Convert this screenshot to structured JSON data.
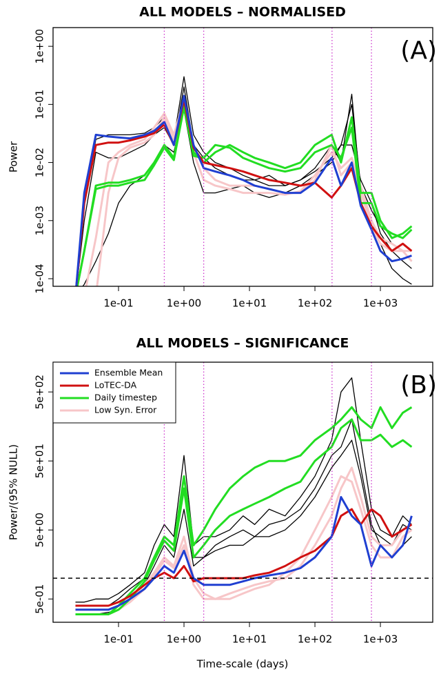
{
  "chart_data": [
    {
      "type": "line",
      "title": "ALL MODELS – NORMALISED",
      "ylabel": "Power",
      "annotation": "(A)",
      "xlog": true,
      "ylog": true,
      "xlim": [
        0.01,
        6300
      ],
      "ylim": [
        7.4e-05,
        2.1
      ],
      "xticks": [
        {
          "value": 0.1,
          "label": "1e-01"
        },
        {
          "value": 1,
          "label": "1e+00"
        },
        {
          "value": 10,
          "label": "1e+01"
        },
        {
          "value": 100,
          "label": "1e+02"
        },
        {
          "value": 1000,
          "label": "1e+03"
        }
      ],
      "yticks": [
        {
          "value": 0.0001,
          "label": "1e-04"
        },
        {
          "value": 0.001,
          "label": "1e-03"
        },
        {
          "value": 0.01,
          "label": "1e-02"
        },
        {
          "value": 0.1,
          "label": "1e-01"
        },
        {
          "value": 1,
          "label": "1e+00"
        }
      ],
      "vlines": [
        0.5,
        2,
        182.5,
        730
      ],
      "vline_color": "#cc33cc",
      "x": [
        0.022,
        0.03,
        0.045,
        0.07,
        0.1,
        0.15,
        0.25,
        0.35,
        0.5,
        0.7,
        1,
        1.4,
        2,
        3,
        5,
        8,
        12,
        20,
        35,
        60,
        100,
        180,
        250,
        365,
        500,
        730,
        1000,
        1500,
        2200,
        3000
      ],
      "series": [
        {
          "color": "#000000",
          "values": [
            5e-05,
            0.002,
            0.025,
            0.03,
            0.03,
            0.03,
            0.032,
            0.04,
            0.06,
            0.025,
            0.3,
            0.03,
            0.015,
            0.01,
            0.008,
            0.006,
            0.005,
            0.004,
            0.004,
            0.005,
            0.008,
            0.02,
            0.01,
            0.15,
            0.003,
            0.001,
            0.0004,
            0.00015,
            0.0001,
            8e-05
          ]
        },
        {
          "color": "#000000",
          "values": [
            5e-05,
            8e-05,
            0.0002,
            0.0006,
            0.002,
            0.004,
            0.006,
            0.01,
            0.02,
            0.015,
            0.08,
            0.01,
            0.003,
            0.003,
            0.0035,
            0.004,
            0.003,
            0.0025,
            0.003,
            0.004,
            0.006,
            0.01,
            0.02,
            0.02,
            0.005,
            0.002,
            0.0006,
            0.0003,
            0.0002,
            0.00015
          ]
        },
        {
          "color": "#000000",
          "values": [
            5e-05,
            0.001,
            0.015,
            0.012,
            0.012,
            0.015,
            0.02,
            0.03,
            0.04,
            0.02,
            0.2,
            0.02,
            0.012,
            0.008,
            0.006,
            0.005,
            0.005,
            0.006,
            0.004,
            0.005,
            0.007,
            0.012,
            0.02,
            0.1,
            0.004,
            0.0015,
            0.0008,
            0.0004,
            0.0003,
            0.0002
          ]
        },
        {
          "color": "#f7c6c8",
          "values": [
            5e-05,
            5e-05,
            0.0005,
            0.01,
            0.015,
            0.02,
            0.025,
            0.04,
            0.07,
            0.03,
            0.12,
            0.02,
            0.008,
            0.005,
            0.004,
            0.004,
            0.004,
            0.0035,
            0.003,
            0.003,
            0.005,
            0.02,
            0.006,
            0.01,
            0.003,
            0.0008,
            0.0004,
            0.0003,
            0.0003,
            0.0003
          ]
        },
        {
          "color": "#f7c6c8",
          "values": [
            5e-05,
            5e-05,
            5e-05,
            0.003,
            0.012,
            0.018,
            0.022,
            0.03,
            0.06,
            0.025,
            0.1,
            0.015,
            0.005,
            0.004,
            0.0035,
            0.003,
            0.003,
            0.003,
            0.0028,
            0.0032,
            0.006,
            0.015,
            0.008,
            0.012,
            0.004,
            0.001,
            0.0005,
            0.0004,
            0.0003,
            0.0002
          ]
        },
        {
          "color": "#22dd22",
          "values": [
            5e-05,
            0.0003,
            0.004,
            0.0045,
            0.0045,
            0.005,
            0.006,
            0.01,
            0.02,
            0.012,
            0.1,
            0.015,
            0.01,
            0.015,
            0.02,
            0.015,
            0.012,
            0.01,
            0.008,
            0.01,
            0.02,
            0.03,
            0.01,
            0.06,
            0.003,
            0.003,
            0.001,
            0.0005,
            0.0006,
            0.0008
          ]
        },
        {
          "color": "#22dd22",
          "values": [
            5e-05,
            0.0003,
            0.0035,
            0.004,
            0.004,
            0.0045,
            0.005,
            0.009,
            0.018,
            0.011,
            0.09,
            0.013,
            0.012,
            0.02,
            0.018,
            0.012,
            0.01,
            0.008,
            0.007,
            0.008,
            0.015,
            0.02,
            0.012,
            0.04,
            0.002,
            0.002,
            0.0008,
            0.0006,
            0.0005,
            0.0007
          ]
        },
        {
          "color": "#d01010",
          "values": [
            5e-05,
            0.002,
            0.02,
            0.022,
            0.022,
            0.024,
            0.028,
            0.032,
            0.045,
            0.02,
            0.12,
            0.018,
            0.01,
            0.009,
            0.008,
            0.007,
            0.006,
            0.005,
            0.0045,
            0.004,
            0.0045,
            0.0025,
            0.004,
            0.008,
            0.002,
            0.0008,
            0.0005,
            0.0003,
            0.0004,
            0.0003
          ]
        },
        {
          "color": "#1f3fd1",
          "values": [
            5e-05,
            0.003,
            0.03,
            0.028,
            0.027,
            0.026,
            0.03,
            0.035,
            0.05,
            0.02,
            0.14,
            0.02,
            0.008,
            0.007,
            0.006,
            0.005,
            0.004,
            0.0035,
            0.003,
            0.003,
            0.0045,
            0.012,
            0.004,
            0.01,
            0.0018,
            0.0007,
            0.0003,
            0.0002,
            0.00022,
            0.00025
          ]
        }
      ]
    },
    {
      "type": "line",
      "title": "ALL MODELS – SIGNIFICANCE",
      "ylabel": "Power/(95% NULL)",
      "xlabel": "Time-scale (days)",
      "annotation": "(B)",
      "xlog": true,
      "ylog": true,
      "xlim": [
        0.01,
        6300
      ],
      "ylim": [
        0.23,
        1350
      ],
      "legend": "top-left",
      "xticks": [
        {
          "value": 0.1,
          "label": "1e-01"
        },
        {
          "value": 1,
          "label": "1e+00"
        },
        {
          "value": 10,
          "label": "1e+01"
        },
        {
          "value": 100,
          "label": "1e+02"
        },
        {
          "value": 1000,
          "label": "1e+03"
        }
      ],
      "yticks": [
        {
          "value": 0.5,
          "label": "5e-01"
        },
        {
          "value": 5,
          "label": "5e+00"
        },
        {
          "value": 50,
          "label": "5e+01"
        },
        {
          "value": 500,
          "label": "5e+02"
        }
      ],
      "vlines": [
        0.5,
        2,
        182.5,
        730
      ],
      "vline_color": "#cc33cc",
      "hline": 1,
      "x": [
        0.022,
        0.03,
        0.045,
        0.07,
        0.1,
        0.15,
        0.25,
        0.35,
        0.5,
        0.7,
        1,
        1.4,
        2,
        3,
        5,
        8,
        12,
        20,
        35,
        60,
        100,
        180,
        250,
        365,
        500,
        730,
        1000,
        1500,
        2200,
        3000
      ],
      "series": [
        {
          "color": "#000000",
          "values": [
            0.45,
            0.45,
            0.5,
            0.5,
            0.6,
            0.8,
            1.2,
            3,
            6,
            4,
            60,
            3,
            4,
            4,
            5,
            8,
            6,
            10,
            8,
            15,
            30,
            100,
            500,
            800,
            100,
            10,
            5,
            4,
            8,
            6
          ]
        },
        {
          "color": "#000000",
          "values": [
            0.3,
            0.3,
            0.3,
            0.32,
            0.35,
            0.5,
            0.8,
            1.5,
            3,
            2,
            10,
            1.5,
            2,
            3,
            4,
            5,
            4,
            6,
            7,
            10,
            20,
            60,
            80,
            200,
            40,
            6,
            3,
            2,
            3,
            4
          ]
        },
        {
          "color": "#000000",
          "values": [
            0.4,
            0.4,
            0.4,
            0.4,
            0.5,
            0.7,
            1.0,
            2,
            4,
            3,
            20,
            2,
            2,
            2.5,
            3,
            3,
            4,
            4,
            5,
            8,
            15,
            40,
            60,
            100,
            30,
            5,
            4,
            3,
            6,
            5
          ]
        },
        {
          "name": "Low Syn. Error",
          "color": "#f7c6c8",
          "values": [
            0.35,
            0.35,
            0.35,
            0.35,
            0.4,
            0.5,
            0.8,
            1.2,
            2,
            1.5,
            4,
            1.0,
            0.6,
            0.5,
            0.6,
            0.7,
            0.8,
            0.9,
            1.0,
            1.5,
            3,
            8,
            20,
            40,
            15,
            4,
            3,
            3,
            5,
            6
          ]
        },
        {
          "color": "#f7c6c8",
          "values": [
            0.3,
            0.3,
            0.3,
            0.3,
            0.35,
            0.45,
            0.7,
            1.1,
            1.8,
            1.4,
            3,
            0.8,
            0.5,
            0.5,
            0.5,
            0.6,
            0.7,
            0.8,
            1.2,
            2,
            5,
            15,
            30,
            25,
            10,
            3,
            2,
            2,
            4,
            5
          ]
        },
        {
          "name": "Daily timestep",
          "color": "#22dd22",
          "values": [
            0.3,
            0.3,
            0.3,
            0.3,
            0.4,
            0.6,
            1.0,
            2,
            4,
            3,
            30,
            3,
            5,
            10,
            20,
            30,
            40,
            50,
            50,
            60,
            100,
            150,
            200,
            300,
            200,
            150,
            300,
            150,
            250,
            300
          ]
        },
        {
          "color": "#22dd22",
          "values": [
            0.3,
            0.3,
            0.3,
            0.3,
            0.35,
            0.5,
            0.9,
            1.8,
            3.5,
            2.5,
            20,
            2,
            3,
            5,
            8,
            10,
            12,
            15,
            20,
            25,
            50,
            80,
            150,
            200,
            100,
            100,
            120,
            80,
            100,
            80
          ]
        },
        {
          "name": "LoTEC-DA",
          "color": "#d01010",
          "values": [
            0.4,
            0.4,
            0.4,
            0.4,
            0.45,
            0.55,
            0.8,
            1.0,
            1.2,
            1.0,
            1.5,
            0.9,
            1.0,
            1.0,
            1.0,
            1.0,
            1.1,
            1.2,
            1.5,
            2,
            2.5,
            4,
            8,
            10,
            6,
            10,
            8,
            4,
            5,
            6
          ]
        },
        {
          "name": "Ensemble Mean",
          "color": "#1f3fd1",
          "values": [
            0.35,
            0.35,
            0.35,
            0.35,
            0.4,
            0.5,
            0.7,
            1.0,
            1.5,
            1.2,
            2.5,
            1.0,
            0.8,
            0.8,
            0.8,
            0.9,
            1.0,
            1.1,
            1.2,
            1.4,
            2,
            4,
            15,
            8,
            6,
            1.5,
            3,
            2,
            3,
            8
          ]
        }
      ]
    }
  ]
}
